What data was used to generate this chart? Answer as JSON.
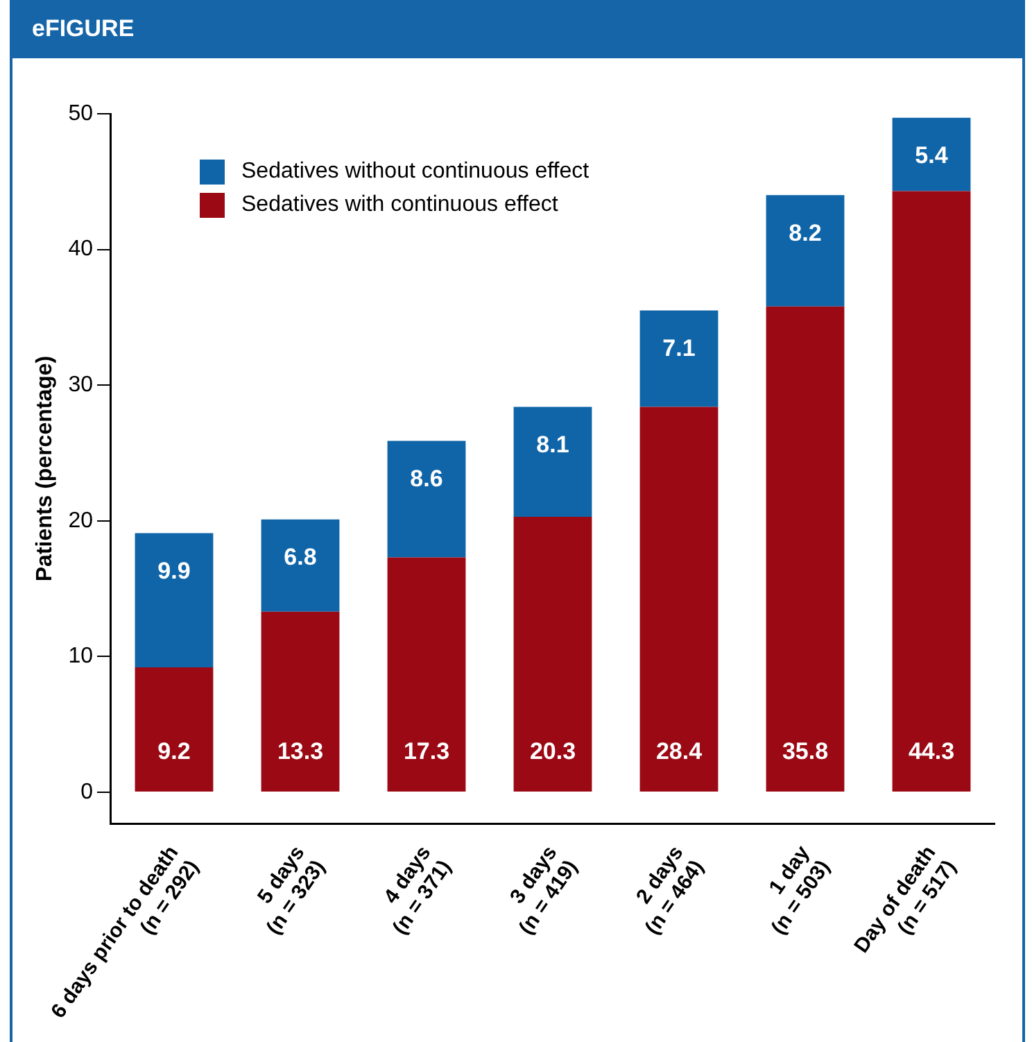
{
  "chart_data": {
    "type": "bar",
    "title": "eFIGURE",
    "ylabel": "Patients (percentage)",
    "categories": [
      "6 days prior to death\n(n = 292)",
      "5 days\n(n = 323)",
      "4 days\n(n = 371)",
      "3 days\n(n = 419)",
      "2 days\n(n = 464)",
      "1 day\n(n = 503)",
      "Day of death\n(n = 517)"
    ],
    "series": [
      {
        "name": "Sedatives with continuous effect",
        "color": "#9b0a14",
        "values": [
          9.2,
          13.3,
          17.3,
          20.3,
          28.4,
          35.8,
          44.3
        ]
      },
      {
        "name": "Sedatives without continuous effect",
        "color": "#0f65a8",
        "values": [
          9.9,
          6.8,
          8.6,
          8.1,
          7.1,
          8.2,
          5.4
        ]
      }
    ],
    "stacked": true,
    "data_labels": true,
    "ylim": [
      -2.3,
      50
    ],
    "yticks": [
      0,
      10,
      20,
      30,
      40,
      50
    ],
    "grid": false,
    "legend": "top left"
  }
}
